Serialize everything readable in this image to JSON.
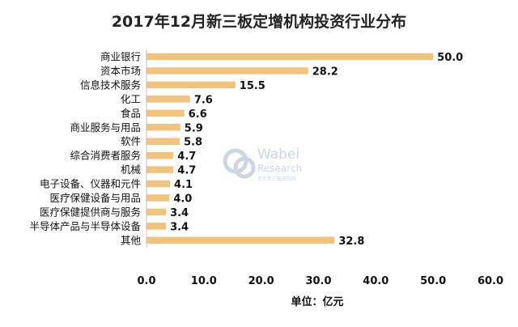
{
  "chart_data": {
    "type": "bar",
    "orientation": "horizontal",
    "title": "2017年12月新三板定增机构投资行业分布",
    "xlabel": "单位：亿元",
    "ylabel": "",
    "xlim": [
      0,
      60
    ],
    "x_ticks": [
      "0.0",
      "10.0",
      "20.0",
      "30.0",
      "40.0",
      "50.0",
      "60.0"
    ],
    "x_tick_values": [
      0,
      10,
      20,
      30,
      40,
      50,
      60
    ],
    "grid": false,
    "bar_color": "#f2c37f",
    "categories": [
      "商业银行",
      "资本市场",
      "信息技术服务",
      "化工",
      "食品",
      "商业服务与用品",
      "软件",
      "综合消费者服务",
      "机械",
      "电子设备、仪器和元件",
      "医疗保健设备与用品",
      "医疗保健提供商与服务",
      "半导体产品与半导体设备",
      "其他"
    ],
    "values": [
      50.0,
      28.2,
      15.5,
      7.6,
      6.6,
      5.9,
      5.8,
      4.7,
      4.7,
      4.1,
      4.0,
      3.4,
      3.4,
      32.8
    ],
    "value_labels": [
      "50.0",
      "28.2",
      "15.5",
      "7.6",
      "6.6",
      "5.9",
      "5.8",
      "4.7",
      "4.7",
      "4.1",
      "4.0",
      "3.4",
      "3.4",
      "32.8"
    ]
  },
  "watermark": {
    "brand": "Wabei",
    "subtitle": "Research",
    "tagline": "挖贝新三板研究院",
    "color": "#c5d0dc"
  }
}
